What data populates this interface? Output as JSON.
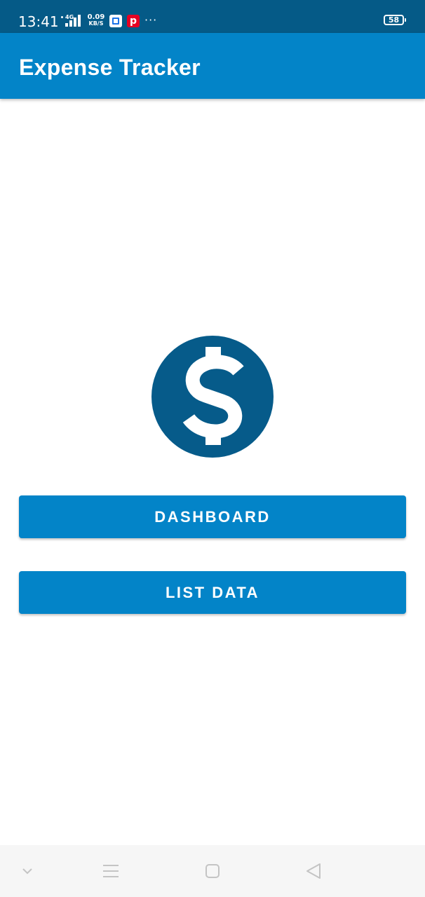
{
  "status_bar": {
    "time": "13:41",
    "network_type": "4G",
    "speed_value": "0.09",
    "speed_unit": "KB/S",
    "more_indicator": "···",
    "battery_level": "58",
    "icons": [
      "signal-icon",
      "app-notification-icon",
      "pinterest-icon",
      "battery-icon"
    ]
  },
  "app_bar": {
    "title": "Expense Tracker"
  },
  "logo": {
    "icon": "dollar-circle-icon",
    "color": "#065b8a"
  },
  "buttons": {
    "dashboard": "DASHBOARD",
    "list_data": "LIST DATA"
  },
  "nav_bar": {
    "icons": [
      "chevron-down-icon",
      "menu-icon",
      "home-icon",
      "back-icon"
    ]
  },
  "colors": {
    "status_bar": "#055a87",
    "primary": "#0384c8",
    "logo": "#065b8a",
    "nav_bar": "#f6f6f6"
  }
}
